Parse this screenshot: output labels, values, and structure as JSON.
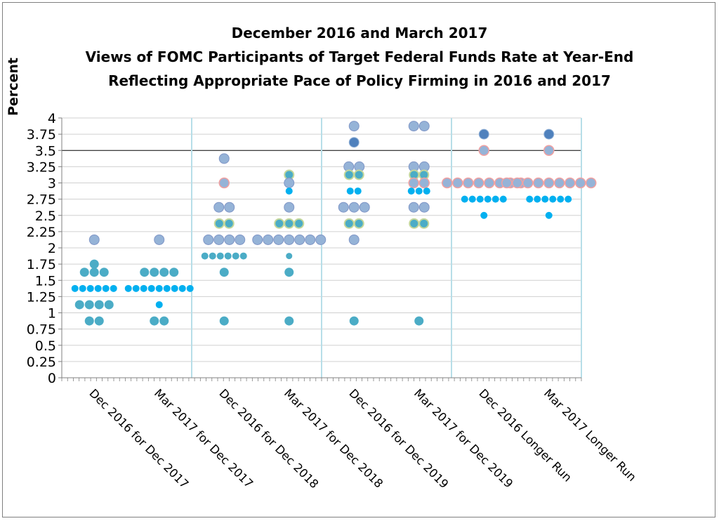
{
  "chart_data": {
    "type": "scatter",
    "title_lines": [
      "December 2016 and March 2017",
      "Views of FOMC Participants of Target Federal Funds Rate at Year-End",
      "Reflecting Appropriate Pace of Policy Firming in 2016 and 2017"
    ],
    "ylabel": "Percent",
    "xlabel": "",
    "ylim": [
      0,
      4
    ],
    "y_ticks": [
      "0",
      "0.25",
      "0.5",
      "0.75",
      "1",
      "1.25",
      "1.5",
      "1.75",
      "2",
      "2.25",
      "2.5",
      "2.75",
      "3",
      "3.25",
      "3.5",
      "3.75",
      "4"
    ],
    "grid": true,
    "legend": "none",
    "categories": [
      "Dec 2016 for Dec 2017",
      "Mar 2017 for Dec 2017",
      "Dec 2016 for Dec 2018",
      "Mar 2017 for Dec 2018",
      "Dec 2016 for Dec 2019",
      "Mar 2017 for Dec 2019",
      "Dec 2016 Longer Run",
      "Mar 2017 Longer Run"
    ],
    "series": [
      {
        "category": "Dec 2016 for Dec 2017",
        "points": [
          {
            "y": 2.125,
            "n": 1
          },
          {
            "y": 1.75,
            "n": 1
          },
          {
            "y": 1.625,
            "n": 3
          },
          {
            "y": 1.375,
            "n": 6
          },
          {
            "y": 1.125,
            "n": 4
          },
          {
            "y": 0.875,
            "n": 2
          }
        ]
      },
      {
        "category": "Mar 2017 for Dec 2017",
        "points": [
          {
            "y": 2.125,
            "n": 1
          },
          {
            "y": 1.625,
            "n": 4
          },
          {
            "y": 1.375,
            "n": 9
          },
          {
            "y": 1.125,
            "n": 1
          },
          {
            "y": 0.875,
            "n": 2
          }
        ]
      },
      {
        "category": "Dec 2016 for Dec 2018",
        "points": [
          {
            "y": 3.375,
            "n": 1
          },
          {
            "y": 3.0,
            "n": 1
          },
          {
            "y": 2.625,
            "n": 2
          },
          {
            "y": 2.375,
            "n": 2
          },
          {
            "y": 2.125,
            "n": 4
          },
          {
            "y": 1.875,
            "n": 6
          },
          {
            "y": 1.625,
            "n": 1
          },
          {
            "y": 0.875,
            "n": 1
          }
        ]
      },
      {
        "category": "Mar 2017 for Dec 2018",
        "points": [
          {
            "y": 3.125,
            "n": 1
          },
          {
            "y": 3.0,
            "n": 1
          },
          {
            "y": 2.875,
            "n": 1
          },
          {
            "y": 2.625,
            "n": 1
          },
          {
            "y": 2.375,
            "n": 3
          },
          {
            "y": 2.125,
            "n": 7
          },
          {
            "y": 1.875,
            "n": 1
          },
          {
            "y": 1.625,
            "n": 1
          },
          {
            "y": 0.875,
            "n": 1
          }
        ]
      },
      {
        "category": "Dec 2016 for Dec 2019",
        "points": [
          {
            "y": 3.875,
            "n": 1
          },
          {
            "y": 3.625,
            "n": 1
          },
          {
            "y": 3.25,
            "n": 2
          },
          {
            "y": 3.125,
            "n": 2
          },
          {
            "y": 2.875,
            "n": 2
          },
          {
            "y": 2.625,
            "n": 3
          },
          {
            "y": 2.375,
            "n": 2
          },
          {
            "y": 2.125,
            "n": 1
          },
          {
            "y": 0.875,
            "n": 1
          }
        ]
      },
      {
        "category": "Mar 2017 for Dec 2019",
        "points": [
          {
            "y": 3.875,
            "n": 2
          },
          {
            "y": 3.25,
            "n": 2
          },
          {
            "y": 3.125,
            "n": 2
          },
          {
            "y": 3.0,
            "n": 2
          },
          {
            "y": 2.875,
            "n": 3
          },
          {
            "y": 2.625,
            "n": 2
          },
          {
            "y": 2.375,
            "n": 2
          },
          {
            "y": 0.875,
            "n": 1
          }
        ]
      },
      {
        "category": "Dec 2016 Longer Run",
        "points": [
          {
            "y": 3.75,
            "n": 1
          },
          {
            "y": 3.5,
            "n": 1
          },
          {
            "y": 3.0,
            "n": 8
          },
          {
            "y": 2.75,
            "n": 6
          },
          {
            "y": 2.5,
            "n": 1
          }
        ]
      },
      {
        "category": "Mar 2017 Longer Run",
        "points": [
          {
            "y": 3.75,
            "n": 1
          },
          {
            "y": 3.5,
            "n": 1
          },
          {
            "y": 3.0,
            "n": 9
          },
          {
            "y": 2.75,
            "n": 6
          },
          {
            "y": 2.5,
            "n": 1
          }
        ]
      }
    ],
    "colors": {
      "blue_small": "#00b0f0",
      "teal": "#4bacc6",
      "lavender": "#95b3d7",
      "slate": "#4f81bd",
      "lavender_outline": "#f2a0a0",
      "teal_outline": "#c4d79b",
      "gridline": "#d0d0d0",
      "separator": "#b7dee8"
    }
  }
}
